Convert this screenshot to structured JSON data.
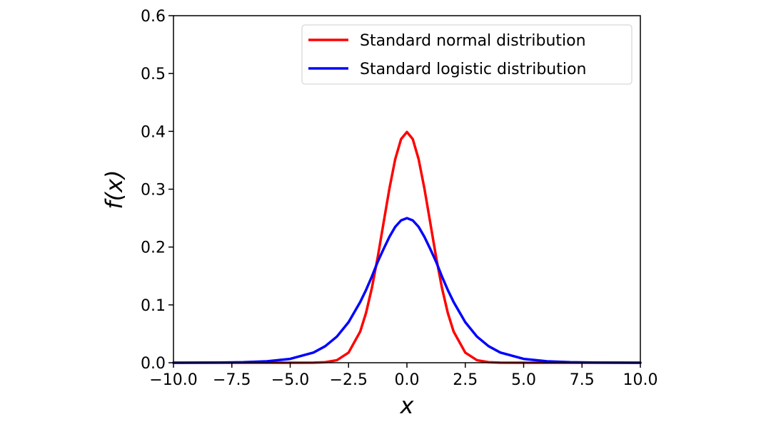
{
  "chart_data": {
    "type": "line",
    "title": "",
    "xlabel": "x",
    "ylabel": "f(x)",
    "xlim": [
      -10,
      10
    ],
    "ylim": [
      0,
      0.6
    ],
    "x_ticks": [
      -10.0,
      -7.5,
      -5.0,
      -2.5,
      0.0,
      2.5,
      5.0,
      7.5,
      10.0
    ],
    "x_tick_labels": [
      "−10.0",
      "−7.5",
      "−5.0",
      "−2.5",
      "0.0",
      "2.5",
      "5.0",
      "7.5",
      "10.0"
    ],
    "y_ticks": [
      0.0,
      0.1,
      0.2,
      0.3,
      0.4,
      0.5,
      0.6
    ],
    "y_tick_labels": [
      "0.0",
      "0.1",
      "0.2",
      "0.3",
      "0.4",
      "0.5",
      "0.6"
    ],
    "grid": false,
    "legend_position": "top-right",
    "series": [
      {
        "name": "Standard normal distribution",
        "color": "#ff0000",
        "x": [
          -10,
          -9,
          -8,
          -7,
          -6,
          -5,
          -4,
          -3.5,
          -3,
          -2.5,
          -2,
          -1.75,
          -1.5,
          -1.25,
          -1,
          -0.75,
          -0.5,
          -0.25,
          0,
          0.25,
          0.5,
          0.75,
          1,
          1.25,
          1.5,
          1.75,
          2,
          2.5,
          3,
          3.5,
          4,
          5,
          6,
          7,
          8,
          9,
          10
        ],
        "y": [
          0,
          0,
          0,
          0,
          0,
          0,
          0.0001,
          0.0009,
          0.0044,
          0.0175,
          0.054,
          0.0863,
          0.1295,
          0.1826,
          0.242,
          0.3011,
          0.3521,
          0.3867,
          0.3989,
          0.3867,
          0.3521,
          0.3011,
          0.242,
          0.1826,
          0.1295,
          0.0863,
          0.054,
          0.0175,
          0.0044,
          0.0009,
          0.0001,
          0,
          0,
          0,
          0,
          0,
          0
        ]
      },
      {
        "name": "Standard logistic distribution",
        "color": "#0000ff",
        "x": [
          -10,
          -9,
          -8,
          -7,
          -6,
          -5,
          -4,
          -3.5,
          -3,
          -2.5,
          -2,
          -1.75,
          -1.5,
          -1.25,
          -1,
          -0.75,
          -0.5,
          -0.25,
          0,
          0.25,
          0.5,
          0.75,
          1,
          1.25,
          1.5,
          1.75,
          2,
          2.5,
          3,
          3.5,
          4,
          5,
          6,
          7,
          8,
          9,
          10
        ],
        "y": [
          4.54e-05,
          0.0001234,
          0.0003354,
          0.0009101,
          0.0024665,
          0.0066481,
          0.0176627,
          0.0285868,
          0.0451767,
          0.0701037,
          0.1049936,
          0.1258514,
          0.1491465,
          0.1746291,
          0.1966119,
          0.2175529,
          0.2350037,
          0.2461166,
          0.25,
          0.2461166,
          0.2350037,
          0.2175529,
          0.1966119,
          0.1746291,
          0.1491465,
          0.1258514,
          0.1049936,
          0.0701037,
          0.0451767,
          0.0285868,
          0.0176627,
          0.0066481,
          0.0024665,
          0.0009101,
          0.0003354,
          0.0001234,
          4.54e-05
        ]
      }
    ]
  }
}
